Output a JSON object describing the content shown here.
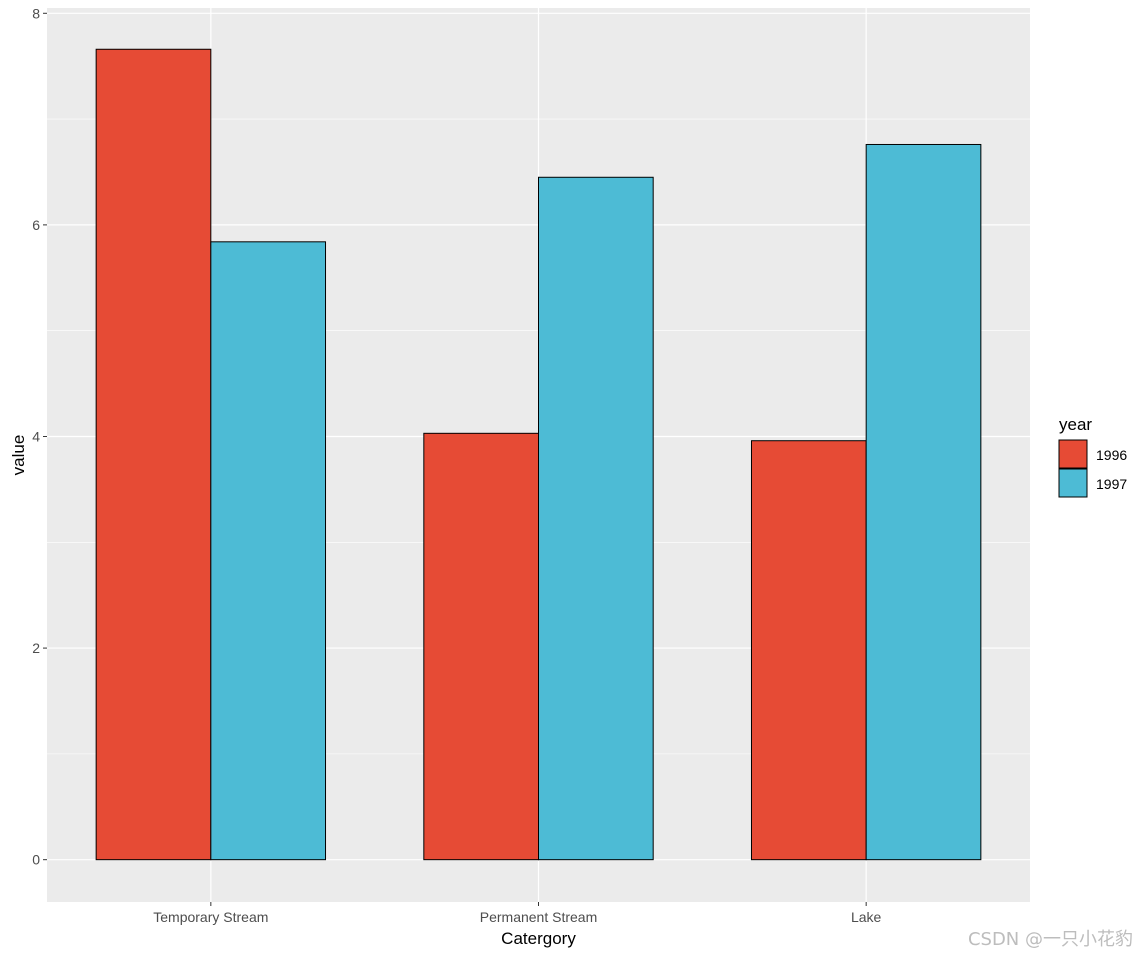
{
  "chart_data": {
    "type": "bar",
    "title": "",
    "xlabel": "Catergory",
    "ylabel": "value",
    "ylim": [
      -0.4,
      8.05
    ],
    "y_ticks": [
      0,
      2,
      4,
      6,
      8
    ],
    "y_tick_labels": [
      "0",
      "2",
      "4",
      "6",
      "8"
    ],
    "categories": [
      "Temporary Stream",
      "Permanent Stream",
      "Lake"
    ],
    "grid": true,
    "legend_title": "year",
    "legend_position": "right",
    "series": [
      {
        "name": "1996",
        "color": "#E64B35",
        "values": [
          7.66,
          4.03,
          3.96
        ]
      },
      {
        "name": "1997",
        "color": "#4DBBD5",
        "values": [
          5.84,
          6.45,
          6.76
        ]
      }
    ]
  },
  "watermark": "CSDN @一只小花豹"
}
